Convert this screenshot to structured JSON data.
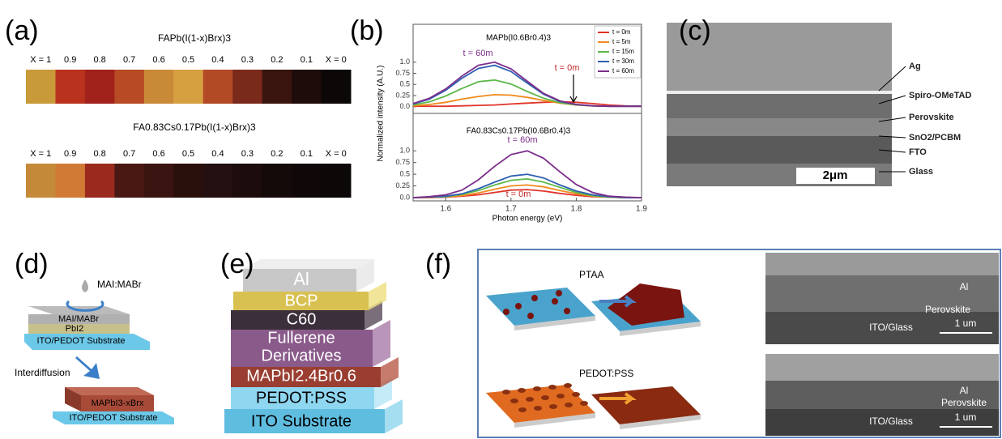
{
  "panel_labels": [
    "(a)",
    "(b)",
    "(c)",
    "(d)",
    "(e)",
    "(f)"
  ],
  "panel_a": {
    "rows": [
      {
        "title": "FAPb(I(1-x)Brx)3",
        "labels": [
          "X = 1",
          "0.9",
          "0.8",
          "0.7",
          "0.6",
          "0.5",
          "0.4",
          "0.3",
          "0.2",
          "0.1",
          "X = 0"
        ]
      },
      {
        "title": "FA0.83Cs0.17Pb(I(1-x)Brx)3",
        "labels": [
          "X = 1",
          "0.9",
          "0.8",
          "0.7",
          "0.6",
          "0.5",
          "0.4",
          "0.3",
          "0.2",
          "0.1",
          "X = 0"
        ]
      }
    ]
  },
  "chart_data": [
    {
      "type": "line",
      "subtitle": "MAPb(I0.6Br0.4)3",
      "ylabel": "Normalized intensity (A.U.)",
      "legend": "upper right",
      "xlim": [
        1.55,
        1.9
      ],
      "ylim": [
        -0.15,
        1.85
      ],
      "yticks": [
        {
          "value": 0,
          "label": "0.0"
        },
        0.25,
        0.5,
        0.75,
        {
          "value": 1,
          "label": "1.0"
        }
      ],
      "x": [
        1.55,
        1.575,
        1.6,
        1.625,
        1.65,
        1.675,
        1.7,
        1.725,
        1.75,
        1.775,
        1.8,
        1.825,
        1.85,
        1.875,
        1.9
      ],
      "series": [
        {
          "name": "t = 0m",
          "color": "#e0342a",
          "values": [
            0.01,
            0.01,
            0.01,
            0.02,
            0.03,
            0.04,
            0.06,
            0.08,
            0.1,
            0.11,
            0.1,
            0.07,
            0.04,
            0.02,
            0.01
          ]
        },
        {
          "name": "t = 5m",
          "color": "#f08a1c",
          "values": [
            0.02,
            0.05,
            0.1,
            0.17,
            0.23,
            0.27,
            0.26,
            0.21,
            0.14,
            0.08,
            0.04,
            0.02,
            0.01,
            0.01,
            0.01
          ]
        },
        {
          "name": "t = 15m",
          "color": "#5cb84a",
          "values": [
            0.04,
            0.11,
            0.24,
            0.41,
            0.56,
            0.6,
            0.51,
            0.34,
            0.19,
            0.09,
            0.04,
            0.02,
            0.01,
            0.01,
            0.01
          ]
        },
        {
          "name": "t = 30m",
          "color": "#2f5fb0",
          "values": [
            0.06,
            0.17,
            0.37,
            0.64,
            0.86,
            0.93,
            0.79,
            0.53,
            0.28,
            0.12,
            0.05,
            0.02,
            0.01,
            0.01,
            0.01
          ]
        },
        {
          "name": "t = 60m",
          "color": "#7b2d8b",
          "values": [
            0.07,
            0.19,
            0.4,
            0.69,
            0.93,
            1.0,
            0.85,
            0.57,
            0.3,
            0.13,
            0.05,
            0.02,
            0.01,
            0.01,
            0.01
          ]
        }
      ],
      "annotations": [
        {
          "text": "t = 60m",
          "color": "#7b2d8b"
        },
        {
          "text": "t = 0m",
          "color": "#c0282a"
        }
      ]
    },
    {
      "type": "line",
      "subtitle": "FA0.83Cs0.17Pb(I0.6Br0.4)3",
      "xlabel": "Photon energy (eV)",
      "xlim": [
        1.55,
        1.9
      ],
      "ylim": [
        -0.07,
        1.8
      ],
      "xticks": [
        1.6,
        1.7,
        1.8,
        1.9
      ],
      "yticks": [
        {
          "value": 0,
          "label": "0.0"
        },
        0.25,
        0.5,
        0.75,
        {
          "value": 1,
          "label": "1.0"
        }
      ],
      "x": [
        1.55,
        1.575,
        1.6,
        1.625,
        1.65,
        1.675,
        1.7,
        1.725,
        1.75,
        1.775,
        1.8,
        1.825,
        1.85,
        1.875,
        1.9
      ],
      "series": [
        {
          "color": "#e0342a",
          "values": [
            0,
            0,
            0.01,
            0.03,
            0.06,
            0.11,
            0.16,
            0.17,
            0.14,
            0.09,
            0.05,
            0.02,
            0.01,
            0,
            0
          ]
        },
        {
          "color": "#f08a1c",
          "values": [
            0,
            0,
            0.02,
            0.04,
            0.1,
            0.18,
            0.25,
            0.27,
            0.23,
            0.15,
            0.08,
            0.03,
            0.01,
            0,
            0
          ]
        },
        {
          "color": "#5cb84a",
          "values": [
            0,
            0.01,
            0.02,
            0.07,
            0.15,
            0.27,
            0.37,
            0.4,
            0.33,
            0.22,
            0.11,
            0.04,
            0.01,
            0,
            0
          ]
        },
        {
          "color": "#2f5fb0",
          "values": [
            0,
            0.01,
            0.03,
            0.08,
            0.19,
            0.33,
            0.46,
            0.5,
            0.42,
            0.27,
            0.14,
            0.06,
            0.02,
            0,
            0
          ]
        },
        {
          "color": "#7b2d8b",
          "values": [
            0,
            0.02,
            0.06,
            0.16,
            0.38,
            0.67,
            0.92,
            1.0,
            0.84,
            0.55,
            0.28,
            0.11,
            0.03,
            0.01,
            0
          ]
        }
      ],
      "annotations": [
        {
          "text": "t = 60m",
          "color": "#7b2d8b"
        },
        {
          "text": "t = 0m",
          "color": "#c0282a"
        }
      ]
    }
  ],
  "panel_c": {
    "layers": [
      "Ag",
      "Spiro-OMeTAD",
      "Perovskite",
      "SnO2/PCBM",
      "FTO",
      "Glass"
    ],
    "scale_bar": "2μm"
  },
  "panel_d": {
    "drop": "MAI:MABr",
    "top_stack": [
      "MAI/MABr",
      "PbI2",
      "ITO/PEDOT Substrate"
    ],
    "arrow": "Interdiffusion",
    "bottom_stack": [
      "MAPbI3-xBrx",
      "ITO/PEDOT Substrate"
    ]
  },
  "panel_e": {
    "layers": [
      "Al",
      "BCP",
      "C60",
      "Fullerene",
      "Derivatives",
      "MAPbI2.4Br0.6",
      "PEDOT:PSS",
      "ITO Substrate"
    ]
  },
  "panel_f": {
    "substrates": [
      "PTAA",
      "PEDOT:PSS"
    ],
    "sem": [
      {
        "labels": [
          "Al",
          "Perovskite",
          "ITO/Glass"
        ],
        "scale": "1 um"
      },
      {
        "labels": [
          "Al",
          "Perovskite",
          "ITO/Glass"
        ],
        "scale": "1 um"
      }
    ]
  }
}
